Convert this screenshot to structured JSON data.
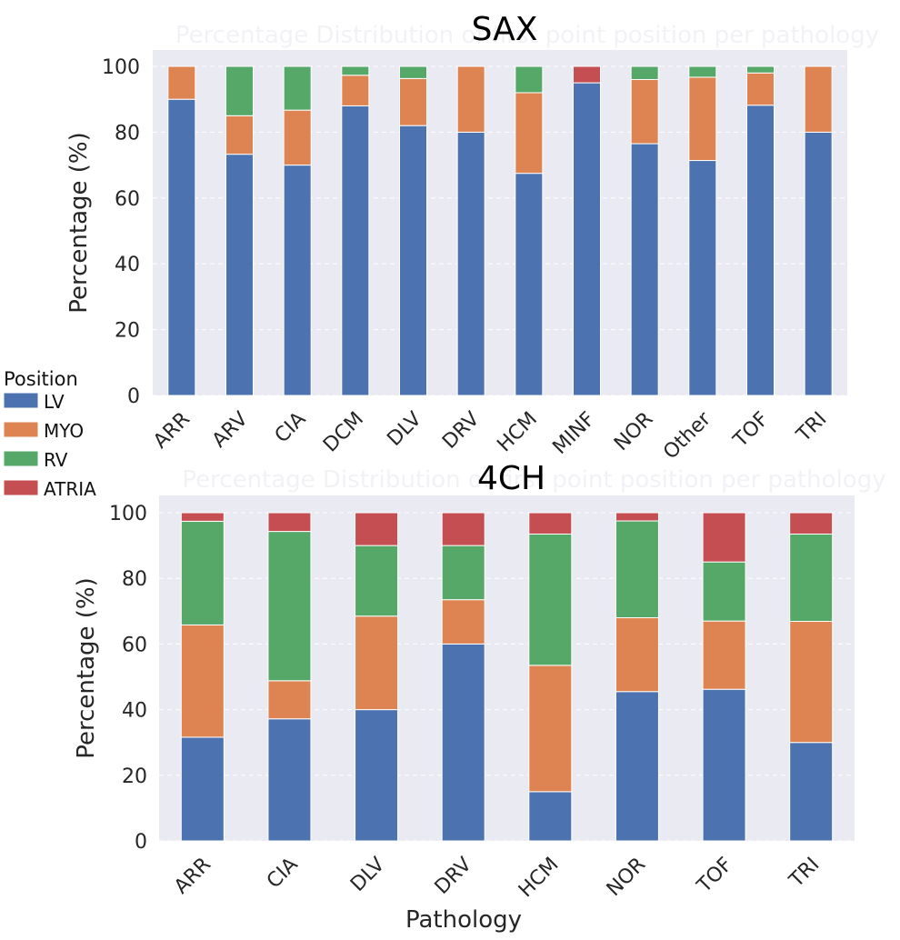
{
  "colors": {
    "background": "#eaeaf2",
    "grid": "#ffffff",
    "LV": "#4c72b0",
    "MYO": "#dd8452",
    "RV": "#55a868",
    "ATRIA": "#c44e52"
  },
  "legend": {
    "title": "Position",
    "entries": [
      "LV",
      "MYO",
      "RV",
      "ATRIA"
    ]
  },
  "chart_data": [
    {
      "type": "bar",
      "stacked": true,
      "title": "SAX",
      "background_title": "Percentage Distribution of first point position per pathology",
      "xlabel": "",
      "ylabel": "Percentage (%)",
      "ylim": [
        0,
        100
      ],
      "yticks": [
        "0",
        "20",
        "40",
        "60",
        "80",
        "100"
      ],
      "grid": true,
      "categories": [
        "ARR",
        "ARV",
        "CIA",
        "DCM",
        "DLV",
        "DRV",
        "HCM",
        "MINF",
        "NOR",
        "Other",
        "TOF",
        "TRI"
      ],
      "series": [
        {
          "name": "LV",
          "values": [
            90,
            73.3,
            70,
            88,
            82,
            80,
            67.5,
            95,
            76.5,
            71.4,
            88.2,
            80
          ]
        },
        {
          "name": "MYO",
          "values": [
            10,
            11.7,
            16.7,
            9.3,
            14.3,
            20,
            24.5,
            0,
            19.5,
            25.3,
            9.8,
            20
          ]
        },
        {
          "name": "RV",
          "values": [
            0,
            15,
            13.3,
            2.7,
            3.7,
            0,
            8,
            0,
            4,
            3.3,
            2,
            0
          ]
        },
        {
          "name": "ATRIA",
          "values": [
            0,
            0,
            0,
            0,
            0,
            0,
            0,
            5,
            0,
            0,
            0,
            0
          ]
        }
      ]
    },
    {
      "type": "bar",
      "stacked": true,
      "title": "4CH",
      "background_title": "Percentage Distribution of first point position per pathology",
      "xlabel": "Pathology",
      "ylabel": "Percentage (%)",
      "ylim": [
        0,
        100
      ],
      "yticks": [
        "0",
        "20",
        "40",
        "60",
        "80",
        "100"
      ],
      "grid": true,
      "categories": [
        "ARR",
        "CIA",
        "DLV",
        "DRV",
        "HCM",
        "NOR",
        "TOF",
        "TRI"
      ],
      "series": [
        {
          "name": "LV",
          "values": [
            31.6,
            37.2,
            40,
            60,
            15,
            45.5,
            46.2,
            30
          ]
        },
        {
          "name": "MYO",
          "values": [
            34.2,
            11.6,
            28.5,
            13.5,
            38.5,
            22.5,
            20.8,
            36.9
          ]
        },
        {
          "name": "RV",
          "values": [
            31.6,
            45.5,
            21.5,
            16.5,
            40,
            29.5,
            18,
            26.6
          ]
        },
        {
          "name": "ATRIA",
          "values": [
            2.6,
            5.7,
            10,
            10,
            6.5,
            2.5,
            15,
            6.5
          ]
        }
      ]
    }
  ]
}
